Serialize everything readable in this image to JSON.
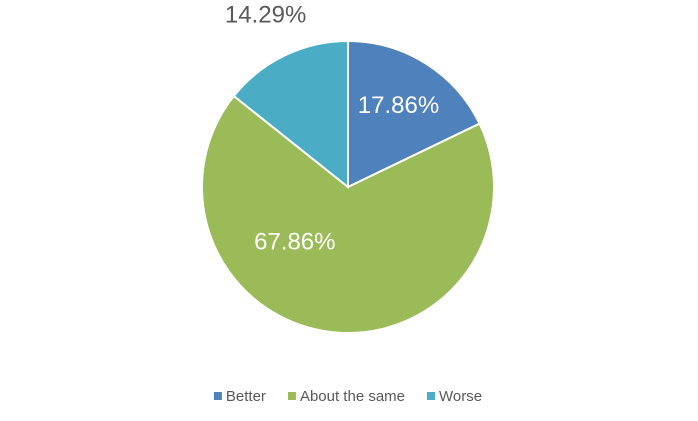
{
  "chart_data": {
    "type": "pie",
    "categories": [
      "Better",
      "About the same",
      "Worse"
    ],
    "values": [
      17.86,
      67.86,
      14.29
    ],
    "value_labels": [
      "17.86%",
      "67.86%",
      "14.29%"
    ],
    "colors": [
      "#4f81bd",
      "#9bbb59",
      "#4bacc6"
    ],
    "legend": "bottom"
  }
}
